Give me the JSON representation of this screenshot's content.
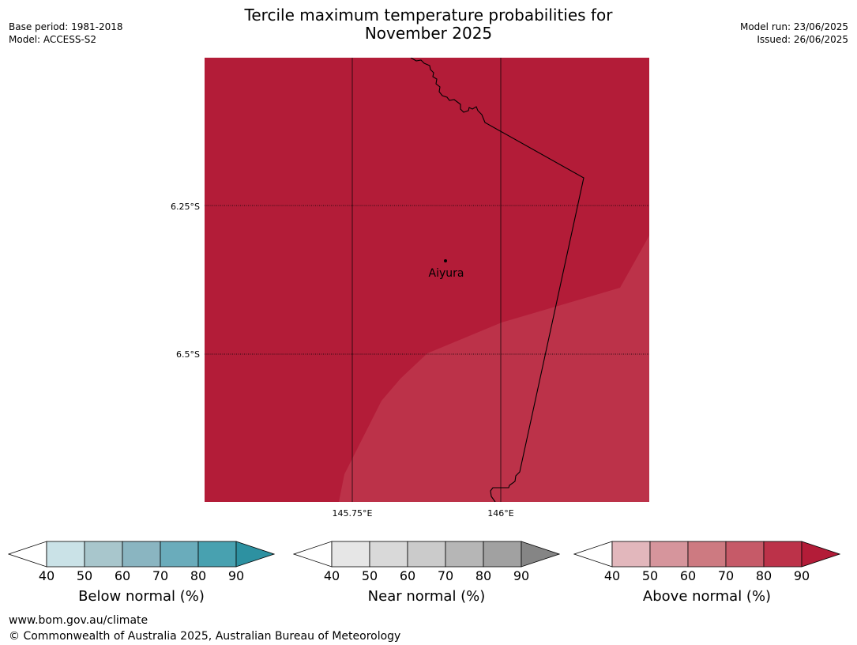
{
  "header": {
    "title_line1": "Tercile maximum temperature probabilities for",
    "title_line2": "November 2025",
    "base_period": "Base period: 1981-2018",
    "model": "Model: ACCESS-S2",
    "model_run": "Model run: 23/06/2025",
    "issued": "Issued: 26/06/2025"
  },
  "map": {
    "lat_labels": [
      "6.25°S",
      "6.5°S"
    ],
    "lon_labels": [
      "145.75°E",
      "146°E"
    ],
    "place_label": "Aiyura",
    "fill_colors": {
      "main": "#b31c38",
      "lighter": "#bc3249"
    }
  },
  "colorbars": [
    {
      "label": "Below normal (%)",
      "ticks": [
        "40",
        "50",
        "60",
        "70",
        "80",
        "90"
      ],
      "colors": [
        "#ffffff",
        "#cae2e7",
        "#a8c6cc",
        "#8ab5c1",
        "#6aacbb",
        "#48a1b0",
        "#2d91a1"
      ]
    },
    {
      "label": "Near normal (%)",
      "ticks": [
        "40",
        "50",
        "60",
        "70",
        "80",
        "90"
      ],
      "colors": [
        "#ffffff",
        "#e6e6e6",
        "#d9d9d9",
        "#cbcbcb",
        "#b6b6b6",
        "#a1a1a1",
        "#858585"
      ]
    },
    {
      "label": "Above normal (%)",
      "ticks": [
        "40",
        "50",
        "60",
        "70",
        "80",
        "90"
      ],
      "colors": [
        "#ffffff",
        "#e2b7bc",
        "#d6959c",
        "#cd7a81",
        "#c65a68",
        "#bc3249",
        "#b31c38"
      ]
    }
  ],
  "footer": {
    "url": "www.bom.gov.au/climate",
    "copyright": "© Commonwealth of Australia 2025, Australian Bureau of Meteorology"
  }
}
